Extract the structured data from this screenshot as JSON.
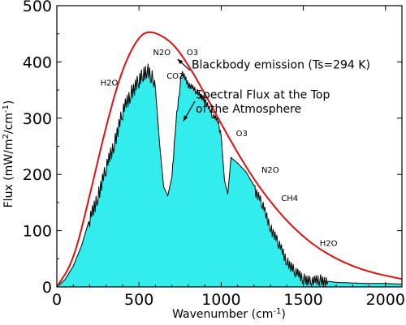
{
  "chart_data": {
    "type": "area",
    "title": "",
    "xlabel": {
      "main": "Wavenumber (cm",
      "sup": "-1",
      "tail": ")"
    },
    "ylabel": {
      "main": "Flux (mW/m",
      "sup1": "2",
      "mid": "/cm",
      "sup2": "-1",
      "tail": ")"
    },
    "xlim": [
      0,
      2100
    ],
    "ylim": [
      0,
      500
    ],
    "x_ticks": [
      0,
      500,
      1000,
      1500,
      2000
    ],
    "y_ticks": [
      0,
      100,
      200,
      300,
      400,
      500
    ],
    "grid": false,
    "colors": {
      "blackbody": "#dd1111",
      "flux_fill": "#33ecec",
      "flux_line": "#000000"
    },
    "series": [
      {
        "name": "Blackbody emission (Ts=294 K)",
        "kind": "line",
        "temperature_K": 294,
        "x": [
          0,
          100,
          200,
          300,
          400,
          500,
          577,
          700,
          800,
          900,
          1000,
          1100,
          1200,
          1300,
          1400,
          1500,
          1600,
          1700,
          1800,
          1900,
          2000,
          2100
        ],
        "values": [
          0,
          45,
          162,
          287,
          390,
          447,
          456,
          436,
          395,
          344,
          290,
          238,
          191,
          151,
          117,
          89,
          67,
          50,
          37,
          27,
          20,
          14
        ]
      },
      {
        "name": "Spectral Flux at the Top of the Atmosphere",
        "kind": "area",
        "x": [
          0,
          50,
          100,
          150,
          200,
          250,
          300,
          350,
          400,
          450,
          500,
          525,
          550,
          575,
          590,
          600,
          625,
          650,
          675,
          700,
          725,
          750,
          760,
          780,
          800,
          850,
          900,
          950,
          980,
          1000,
          1020,
          1040,
          1060,
          1080,
          1100,
          1150,
          1200,
          1250,
          1300,
          1350,
          1400,
          1450,
          1500,
          1550,
          1600,
          1650,
          1700,
          1800,
          1900,
          2000,
          2100
        ],
        "values": [
          0,
          13,
          37,
          73,
          122,
          168,
          215,
          262,
          315,
          350,
          372,
          385,
          392,
          378,
          375,
          353,
          255,
          178,
          162,
          195,
          298,
          360,
          382,
          375,
          362,
          350,
          335,
          305,
          298,
          268,
          190,
          165,
          230,
          225,
          220,
          205,
          180,
          150,
          110,
          80,
          50,
          30,
          20,
          12,
          18,
          10,
          8,
          7,
          6,
          6,
          5
        ]
      }
    ],
    "annotations": [
      {
        "text": "H2O",
        "x": 265,
        "y": 358
      },
      {
        "text": "N2O",
        "x": 585,
        "y": 412
      },
      {
        "text": "O3",
        "x": 790,
        "y": 412
      },
      {
        "text": "CO2",
        "x": 668,
        "y": 370
      },
      {
        "text": "Blackbody emission (Ts=294 K)",
        "x": 820,
        "y": 388,
        "size": "big"
      },
      {
        "text": "Spectral Flux at the Top",
        "x": 845,
        "y": 335,
        "size": "big"
      },
      {
        "text": "of the Atmosphere",
        "x": 845,
        "y": 310,
        "size": "big"
      },
      {
        "text": "O3",
        "x": 1090,
        "y": 268
      },
      {
        "text": "N2O",
        "x": 1245,
        "y": 203
      },
      {
        "text": "CH4",
        "x": 1365,
        "y": 153
      },
      {
        "text": "H2O",
        "x": 1600,
        "y": 73
      }
    ]
  }
}
